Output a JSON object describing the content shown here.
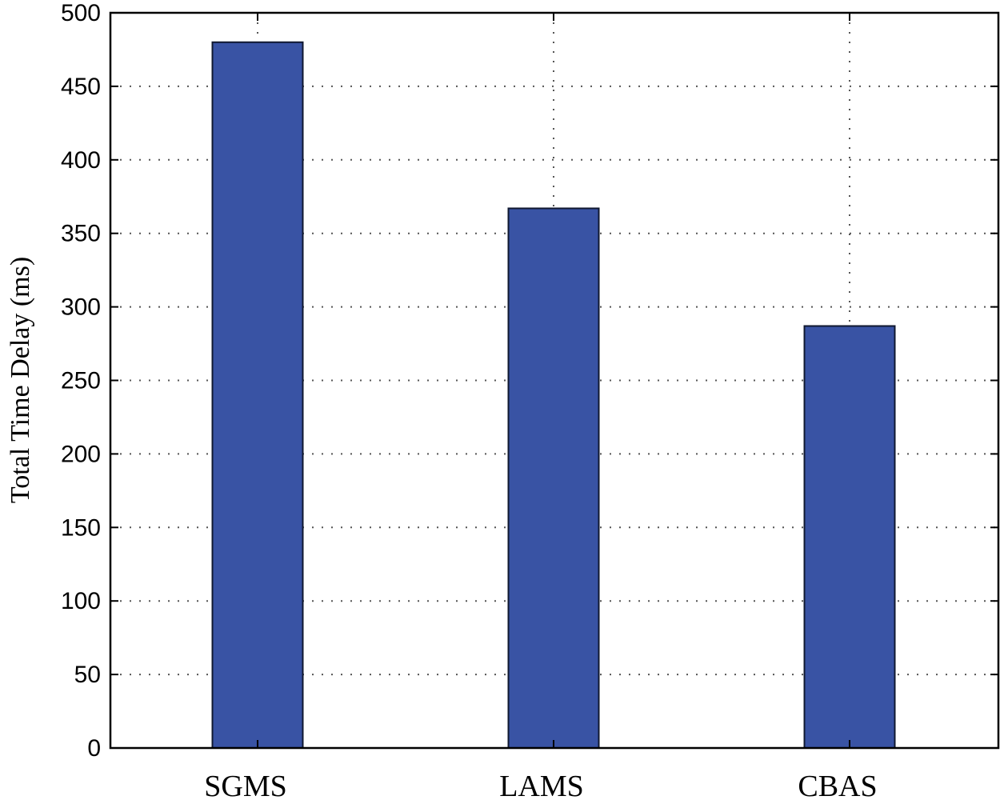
{
  "chart_data": {
    "type": "bar",
    "categories": [
      "SGMS",
      "LAMS",
      "CBAS"
    ],
    "values": [
      480,
      367,
      287
    ],
    "ylabel": "Total Time Delay  (ms)",
    "xlabel": "",
    "ylim": [
      0,
      500
    ],
    "yticks": [
      0,
      50,
      100,
      150,
      200,
      250,
      300,
      350,
      400,
      450,
      500
    ],
    "grid": true,
    "bar_color": "#3953a4"
  }
}
